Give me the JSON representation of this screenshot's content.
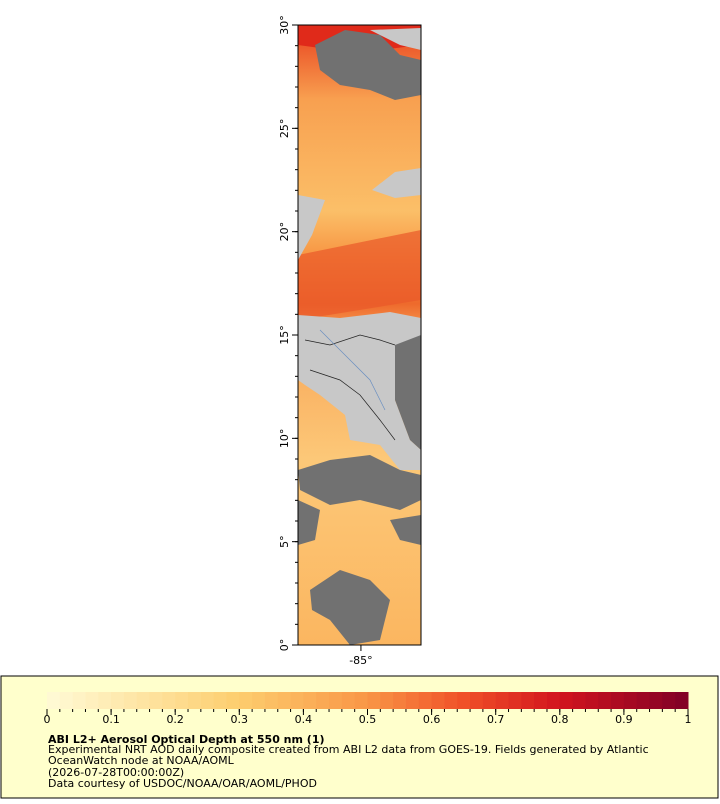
{
  "map": {
    "lat_range": [
      0,
      30
    ],
    "lon_range": [
      -88.07,
      -82.07
    ],
    "lat_ticks": [
      {
        "value": 0,
        "label": "0°"
      },
      {
        "value": 5,
        "label": "5°"
      },
      {
        "value": 10,
        "label": "10°"
      },
      {
        "value": 15,
        "label": "15°"
      },
      {
        "value": 20,
        "label": "20°"
      },
      {
        "value": 25,
        "label": "25°"
      },
      {
        "value": 30,
        "label": "30°"
      }
    ],
    "lon_ticks": [
      {
        "value": -85,
        "label": "-85°"
      }
    ]
  },
  "colorbar": {
    "range": [
      0,
      1
    ],
    "ticks": [
      0,
      0.1,
      0.2,
      0.3,
      0.4,
      0.5,
      0.6,
      0.7,
      0.8,
      0.9,
      1
    ]
  },
  "legend": {
    "title": "ABI L2+ Aerosol Optical Depth at 550 nm (1)",
    "lines": [
      "Experimental NRT AOD daily composite created from ABI L2 data from GOES-19. Fields generated by Atlantic",
      "OceanWatch node at NOAA/AOML",
      "(2026-07-28T00:00:00Z)",
      "Data courtesy of USDOC/NOAA/OAR/AOML/PHOD"
    ]
  }
}
